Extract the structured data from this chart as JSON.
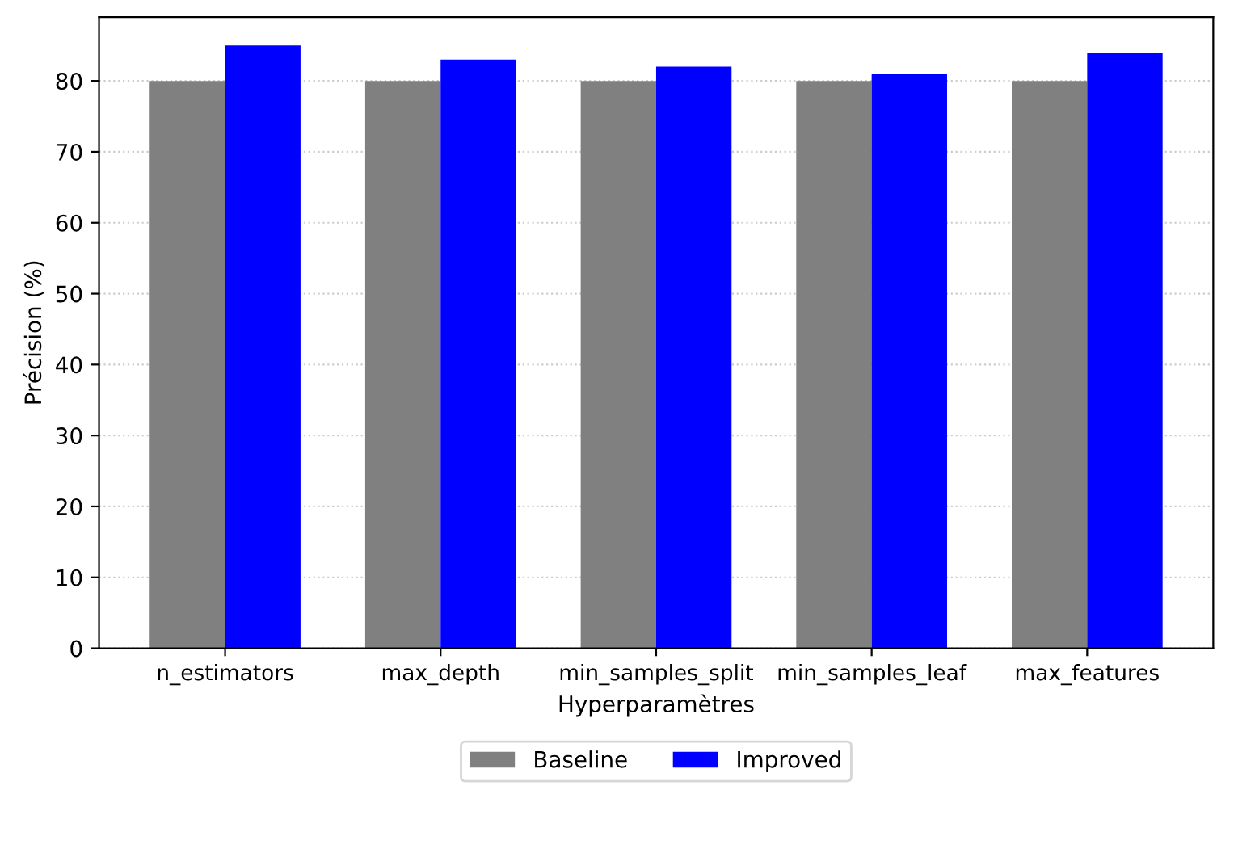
{
  "chart_data": {
    "type": "bar",
    "xlabel": "Hyperparamètres",
    "ylabel": "Précision (%)",
    "categories": [
      "n_estimators",
      "max_depth",
      "min_samples_split",
      "min_samples_leaf",
      "max_features"
    ],
    "series": [
      {
        "name": "Baseline",
        "color": "#808080",
        "values": [
          80,
          80,
          80,
          80,
          80
        ]
      },
      {
        "name": "Improved",
        "color": "#0000ff",
        "values": [
          85,
          83,
          82,
          81,
          84
        ]
      }
    ],
    "ylim": [
      0,
      89
    ],
    "yticks": [
      0,
      10,
      20,
      30,
      40,
      50,
      60,
      70,
      80
    ],
    "grid": "y",
    "legend": "bottom"
  }
}
